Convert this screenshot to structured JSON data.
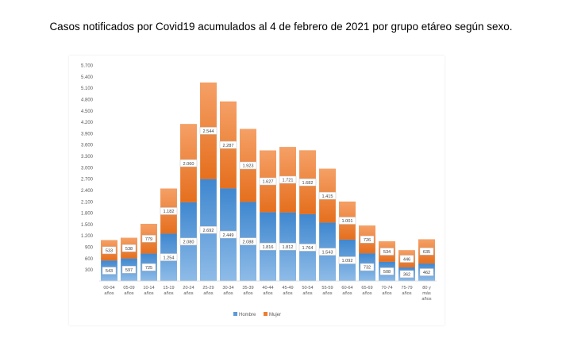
{
  "page": {
    "title": "Casos notificados por Covid19 acumulados al 4 de febrero de 2021 por grupo etáreo según sexo."
  },
  "colors": {
    "hombre": "#5b9bd5",
    "mujer": "#ed7d31"
  },
  "chart_data": {
    "type": "bar",
    "stacked": true,
    "categories": [
      "00-04 años",
      "05-09 años",
      "10-14 años",
      "15-19 años",
      "20-24 años",
      "25-29 años",
      "30-34 años",
      "35-39 años",
      "40-44 años",
      "45-49 años",
      "50-54 años",
      "55-59 años",
      "60-64 años",
      "65-69 años",
      "70-74 años",
      "75-79 años",
      "80 y más años"
    ],
    "category_lines": [
      [
        "00-04",
        "años"
      ],
      [
        "05-09",
        "años"
      ],
      [
        "10-14",
        "años"
      ],
      [
        "15-19",
        "años"
      ],
      [
        "20-24",
        "años"
      ],
      [
        "25-29",
        "años"
      ],
      [
        "30-34",
        "años"
      ],
      [
        "35-39",
        "años"
      ],
      [
        "40-44",
        "años"
      ],
      [
        "45-49",
        "años"
      ],
      [
        "50-54",
        "años"
      ],
      [
        "55-59",
        "años"
      ],
      [
        "60-64",
        "años"
      ],
      [
        "65-69",
        "años"
      ],
      [
        "70-74",
        "años"
      ],
      [
        "75-79",
        "años"
      ],
      [
        "80 y",
        "más",
        "años"
      ]
    ],
    "series": [
      {
        "name": "Hombre",
        "values": [
          543,
          597,
          725,
          1254,
          2080,
          2692,
          2449,
          2088,
          1816,
          1812,
          1764,
          1543,
          1092,
          732,
          508,
          362,
          462
        ]
      },
      {
        "name": "Mujer",
        "values": [
          533,
          538,
          779,
          1182,
          2060,
          2544,
          2287,
          1923,
          1627,
          1721,
          1682,
          1415,
          1001,
          726,
          534,
          446,
          635
        ]
      }
    ],
    "data_labels": {
      "Hombre": [
        "543",
        "597",
        "725",
        "1.254",
        "2.080",
        "2.692",
        "2.449",
        "2.088",
        "1.816",
        "1.812",
        "1.764",
        "1.543",
        "1.092",
        "732",
        "508",
        "362",
        "462"
      ],
      "Mujer": [
        "533",
        "538",
        "779",
        "1.182",
        "2.060",
        "2.544",
        "2.287",
        "1.923",
        "1.627",
        "1.721",
        "1.682",
        "1.415",
        "1.001",
        "726",
        "534",
        "446",
        "635"
      ]
    },
    "yticks": [
      0,
      300,
      600,
      900,
      1200,
      1500,
      1800,
      2100,
      2400,
      2700,
      3000,
      3300,
      3600,
      3900,
      4200,
      4500,
      4800,
      5100,
      5400,
      5700
    ],
    "ytick_labels": [
      "",
      "300",
      "600",
      "900",
      "1.200",
      "1.500",
      "1.800",
      "2.100",
      "2.400",
      "2.700",
      "3.000",
      "3.300",
      "3.600",
      "3.900",
      "4.200",
      "4.500",
      "4.800",
      "5.100",
      "5.400",
      "5.700"
    ],
    "ylim": [
      0,
      5700
    ],
    "grid": false,
    "legend_position": "bottom",
    "legend": [
      "Hombre",
      "Mujer"
    ],
    "xlabel": "",
    "ylabel": ""
  }
}
